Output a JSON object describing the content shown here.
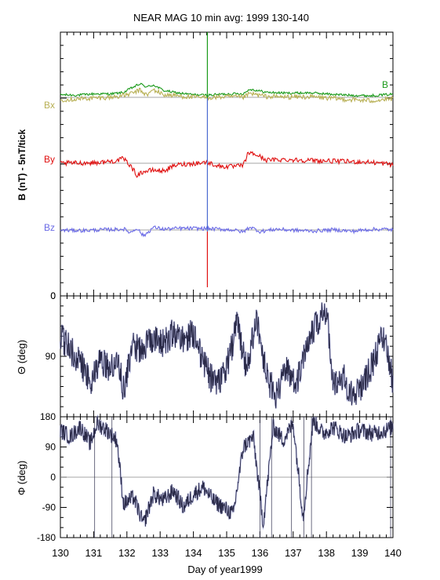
{
  "title": "NEAR MAG 10 min avg: 1999 130-140",
  "colors": {
    "B": "#1a9a1a",
    "Bx": "#b8b055",
    "By": "#e01010",
    "Bz": "#6a6ae6",
    "theta": "#2a2a48",
    "phi": "#2a2a48",
    "event_top": "#1a9a1a",
    "event_mid": "#4a6ad0",
    "event_bottom": "#e01010"
  },
  "chart_data": [
    {
      "type": "line",
      "panel": "field-components",
      "ylabel": "B  (nT) - 5nT/tick",
      "yticks": [
        "0"
      ],
      "xlim": [
        130,
        140
      ],
      "event_line_x": 134.42,
      "grid": false,
      "series": [
        {
          "name": "B",
          "x": [
            130,
            130.5,
            131,
            131.5,
            131.9,
            132.1,
            132.4,
            132.6,
            132.8,
            133.1,
            133.5,
            134,
            134.4,
            135,
            135.5,
            135.7,
            136.2,
            136.8,
            137.5,
            138.5,
            139.3,
            140
          ],
          "y": [
            14.5,
            14.3,
            14.8,
            14.8,
            15.3,
            16.8,
            18.6,
            17.4,
            18.2,
            16.1,
            15.2,
            14.5,
            14.3,
            14.8,
            14.9,
            16.6,
            15.4,
            15.1,
            15.2,
            14.4,
            14.1,
            14.7
          ]
        },
        {
          "name": "Bx",
          "x": [
            130,
            130.5,
            131,
            131.5,
            131.9,
            132.1,
            132.4,
            132.6,
            132.8,
            133.1,
            133.5,
            134,
            134.4,
            135,
            135.5,
            135.7,
            136.2,
            136.8,
            137.5,
            138.5,
            139.3,
            140
          ],
          "y": [
            12.6,
            12.9,
            13.2,
            13.5,
            14.2,
            14.8,
            16.2,
            14.3,
            16.4,
            14.5,
            14.1,
            13.5,
            13.4,
            13.7,
            13.5,
            14.9,
            13.8,
            13.6,
            13.7,
            12.8,
            12.2,
            12.9
          ]
        },
        {
          "name": "By",
          "x": [
            130,
            130.6,
            131.2,
            131.7,
            131.9,
            132.1,
            132.3,
            132.5,
            132.8,
            133.1,
            133.5,
            133.9,
            134.4,
            134.8,
            135.2,
            135.5,
            135.65,
            135.9,
            136.2,
            136.7,
            137.3,
            138,
            138.7,
            139.3,
            139.9,
            140
          ],
          "y": [
            0,
            0.1,
            0.3,
            1.0,
            1.8,
            -0.8,
            -4.5,
            -3.2,
            -2.6,
            -2.9,
            -0.6,
            -0.2,
            0.4,
            -1.2,
            -1.3,
            -0.8,
            4.0,
            3.2,
            1.2,
            1.4,
            1.2,
            0.9,
            0.6,
            0.4,
            -0.3,
            -0.8
          ]
        },
        {
          "name": "Bz",
          "x": [
            130,
            130.7,
            131.3,
            131.7,
            131.9,
            132.1,
            132.3,
            132.5,
            132.8,
            133.1,
            133.6,
            134,
            134.4,
            134.8,
            135.2,
            135.5,
            135.7,
            136,
            136.5,
            137,
            137.6,
            138.2,
            138.8,
            139.3,
            139.8,
            140
          ],
          "y": [
            -13.3,
            -13.4,
            -13.1,
            -13.0,
            -12.8,
            -14.2,
            -12.5,
            -15.5,
            -12.2,
            -12.9,
            -12.6,
            -12.6,
            -12.7,
            -12.9,
            -13.2,
            -14.0,
            -12.0,
            -13.8,
            -12.9,
            -13.3,
            -13.6,
            -13.1,
            -13.7,
            -13.0,
            -12.9,
            -13.2
          ]
        }
      ]
    },
    {
      "type": "line",
      "panel": "theta",
      "ylabel": "Θ (deg)",
      "yticks": [
        "0",
        "90"
      ],
      "ylim": [
        0,
        180
      ],
      "xlim": [
        130,
        140
      ],
      "reference_y": 90,
      "series": [
        {
          "x": [
            130,
            130.3,
            130.6,
            130.9,
            131.2,
            131.5,
            131.7,
            131.9,
            132.2,
            132.5,
            132.8,
            133.1,
            133.4,
            133.7,
            134,
            134.3,
            134.5,
            134.8,
            135.1,
            135.3,
            135.6,
            135.9,
            136.2,
            136.5,
            136.8,
            137.1,
            137.4,
            137.7,
            138,
            138.2,
            138.5,
            138.8,
            139.1,
            139.4,
            139.7,
            139.9,
            140
          ],
          "y": [
            60,
            80,
            100,
            130,
            95,
            110,
            90,
            140,
            75,
            80,
            60,
            70,
            55,
            65,
            55,
            100,
            120,
            130,
            90,
            40,
            110,
            30,
            120,
            150,
            110,
            130,
            70,
            40,
            20,
            130,
            120,
            150,
            130,
            100,
            60,
            100,
            130
          ]
        }
      ]
    },
    {
      "type": "line",
      "panel": "phi",
      "ylabel": "Φ (deg)",
      "yticks": [
        "180",
        "90",
        "0",
        "-90",
        "-180"
      ],
      "ylim": [
        -180,
        180
      ],
      "xlim": [
        130,
        140
      ],
      "xticks": [
        130,
        131,
        132,
        133,
        134,
        135,
        136,
        137,
        138,
        139,
        140
      ],
      "xlabel": "Day of year1999",
      "reference_y": 0,
      "series": [
        {
          "x": [
            130,
            130.3,
            130.6,
            130.9,
            131.1,
            131.4,
            131.7,
            131.9,
            132.2,
            132.5,
            132.8,
            133.1,
            133.4,
            133.7,
            134,
            134.3,
            134.6,
            134.9,
            135.2,
            135.5,
            135.8,
            136.1,
            136.4,
            136.7,
            137,
            137.3,
            137.6,
            137.9,
            138.2,
            138.6,
            139,
            139.4,
            139.8,
            140
          ],
          "y": [
            140,
            120,
            150,
            100,
            160,
            140,
            110,
            -80,
            -60,
            -140,
            -50,
            -70,
            -40,
            -90,
            -50,
            -30,
            -70,
            -90,
            -110,
            90,
            120,
            -140,
            150,
            110,
            160,
            -120,
            170,
            130,
            150,
            120,
            140,
            130,
            140,
            150
          ]
        }
      ]
    }
  ]
}
